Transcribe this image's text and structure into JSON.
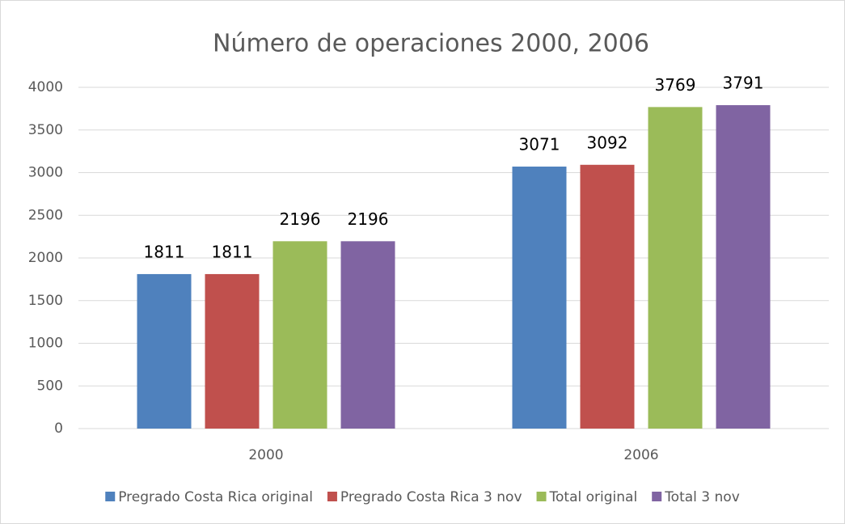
{
  "chart_data": {
    "type": "bar",
    "title": "Número de operaciones 2000, 2006",
    "categories": [
      "2000",
      "2006"
    ],
    "series": [
      {
        "name": "Pregrado Costa Rica original",
        "color": "#4f81bd",
        "values": [
          1811,
          3071
        ]
      },
      {
        "name": "Pregrado Costa Rica 3 nov",
        "color": "#c0504d",
        "values": [
          1811,
          3092
        ]
      },
      {
        "name": "Total original",
        "color": "#9bbb59",
        "values": [
          2196,
          3769
        ]
      },
      {
        "name": "Total 3 nov",
        "color": "#8064a2",
        "values": [
          2196,
          3791
        ]
      }
    ],
    "ylim": [
      0,
      4000
    ],
    "yticks": [
      0,
      500,
      1000,
      1500,
      2000,
      2500,
      3000,
      3500,
      4000
    ],
    "grid": true,
    "legend": "bottom"
  }
}
